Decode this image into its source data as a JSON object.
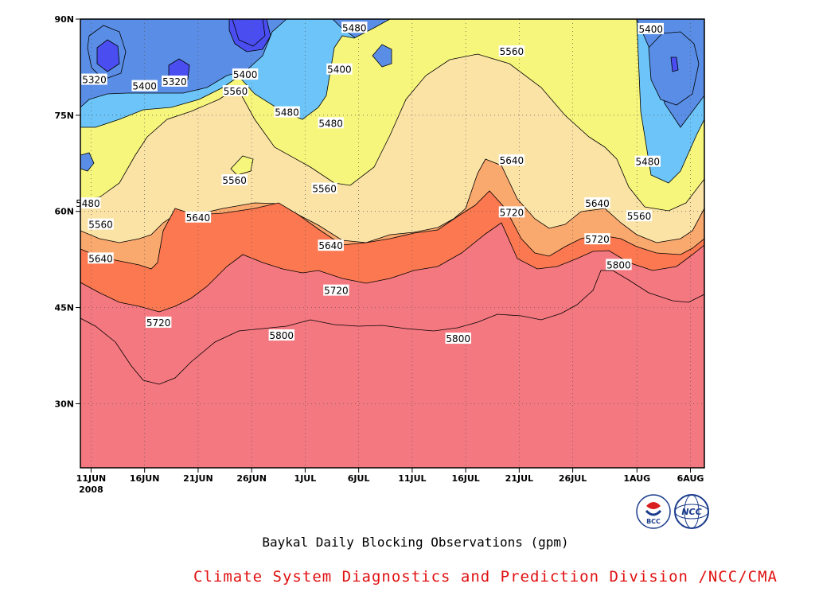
{
  "chart_data": {
    "type": "contour",
    "title": "Baykal Daily Blocking Observations (gpm)",
    "xlabel": "",
    "ylabel": "",
    "x_ticks": [
      "11JUN",
      "16JUN",
      "21JUN",
      "26JUN",
      "1JUL",
      "6JUL",
      "11JUL",
      "16JUL",
      "21JUL",
      "26JUL",
      "1AUG",
      "6AUG"
    ],
    "x_year_label": "2008",
    "y_ticks": [
      "30N",
      "45N",
      "60N",
      "75N",
      "90N"
    ],
    "x_range_days": [
      "10JUN",
      "7AUG"
    ],
    "y_range": [
      20,
      90
    ],
    "grid": true,
    "levels": [
      5320,
      5400,
      5480,
      5560,
      5640,
      5720,
      5800
    ],
    "fill_colors": [
      "#4a4ef0",
      "#5a8ee6",
      "#6cc4f8",
      "#f6f67c",
      "#fbe3a6",
      "#f9a86e",
      "#fb7850",
      "#f47880"
    ],
    "contour_labels": [
      {
        "text": "5320",
        "day": 11.3,
        "lat": 80.5
      },
      {
        "text": "5400",
        "day": 16,
        "lat": 79.5
      },
      {
        "text": "5320",
        "day": 18.8,
        "lat": 80.2
      },
      {
        "text": "5400",
        "day": 25.4,
        "lat": 81.3
      },
      {
        "text": "5560",
        "day": 24.5,
        "lat": 78.7
      },
      {
        "text": "5480",
        "day": 29.3,
        "lat": 75.4
      },
      {
        "text": "5480",
        "day": 35.6,
        "lat": 88.6
      },
      {
        "text": "5400",
        "day": 34.2,
        "lat": 82.1
      },
      {
        "text": "5480",
        "day": 33.4,
        "lat": 73.7
      },
      {
        "text": "5560",
        "day": 50.3,
        "lat": 84.9
      },
      {
        "text": "5400",
        "day": 63.3,
        "lat": 88.4
      },
      {
        "text": "5560",
        "day": 24.4,
        "lat": 64.8
      },
      {
        "text": "5560",
        "day": 32.8,
        "lat": 63.5
      },
      {
        "text": "5640",
        "day": 50.3,
        "lat": 67.9
      },
      {
        "text": "5480",
        "day": 10.7,
        "lat": 61.2
      },
      {
        "text": "5560",
        "day": 11.9,
        "lat": 57.9
      },
      {
        "text": "5640",
        "day": 21,
        "lat": 59
      },
      {
        "text": "5640",
        "day": 58.3,
        "lat": 61.2
      },
      {
        "text": "5480",
        "day": 63,
        "lat": 67.7
      },
      {
        "text": "5560",
        "day": 62.2,
        "lat": 59.2
      },
      {
        "text": "5640",
        "day": 11.9,
        "lat": 52.6
      },
      {
        "text": "5640",
        "day": 33.4,
        "lat": 54.6
      },
      {
        "text": "5720",
        "day": 50.3,
        "lat": 59.8
      },
      {
        "text": "5720",
        "day": 58.3,
        "lat": 55.6
      },
      {
        "text": "5800",
        "day": 60.3,
        "lat": 51.6
      },
      {
        "text": "5720",
        "day": 33.9,
        "lat": 47.6
      },
      {
        "text": "5720",
        "day": 17.3,
        "lat": 42.6
      },
      {
        "text": "5800",
        "day": 28.8,
        "lat": 40.6
      },
      {
        "text": "5800",
        "day": 45.3,
        "lat": 40.1
      }
    ]
  },
  "footer": {
    "title": "Baykal Daily Blocking Observations (gpm)",
    "credit": "Climate System Diagnostics and Prediction Division /NCC/CMA"
  },
  "logos": {
    "bcc": {
      "icon": "bcc-logo-icon",
      "text": "BCC",
      "colors": [
        "#1a3c8c",
        "#d81e1e"
      ]
    },
    "ncc": {
      "icon": "ncc-logo-icon",
      "text": "NCC",
      "colors": [
        "#1a3c8c"
      ]
    }
  }
}
